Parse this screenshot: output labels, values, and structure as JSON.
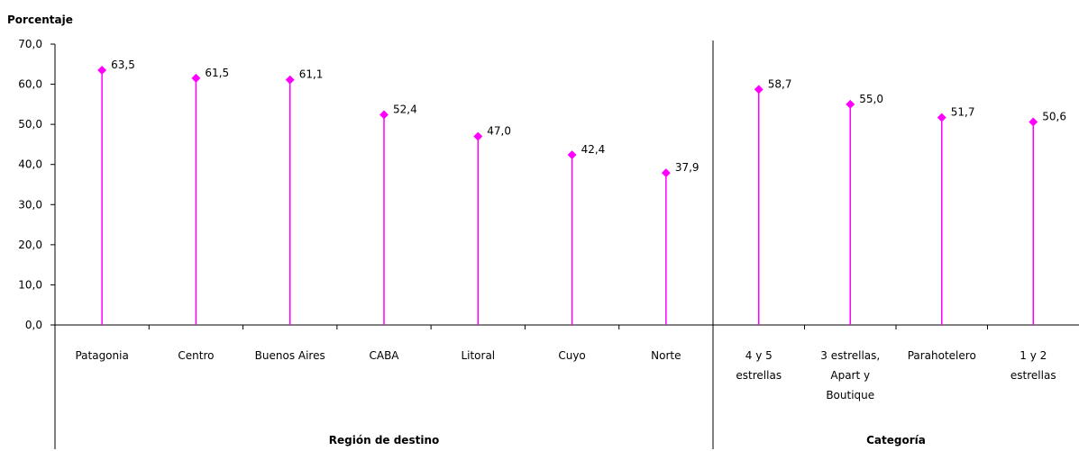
{
  "chart_data": {
    "type": "scatter",
    "style": "lollipop",
    "ylabel": "Porcentaje",
    "ylim": [
      0,
      70
    ],
    "yticks": [
      "0,0",
      "10,0",
      "20,0",
      "30,0",
      "40,0",
      "50,0",
      "60,0",
      "70,0"
    ],
    "grid": false,
    "marker_color": "#FF00FF",
    "groups": [
      {
        "name": "Región de destino",
        "categories": [
          [
            "Patagonia"
          ],
          [
            "Centro"
          ],
          [
            "Buenos Aires"
          ],
          [
            "CABA"
          ],
          [
            "Litoral"
          ],
          [
            "Cuyo"
          ],
          [
            "Norte"
          ]
        ],
        "values": [
          63.5,
          61.5,
          61.1,
          52.4,
          47.0,
          42.4,
          37.9
        ],
        "labels": [
          "63,5",
          "61,5",
          "61,1",
          "52,4",
          "47,0",
          "42,4",
          "37,9"
        ]
      },
      {
        "name": "Categoría",
        "categories": [
          [
            "4 y 5",
            "estrellas"
          ],
          [
            "3 estrellas,",
            "Apart y",
            "Boutique"
          ],
          [
            "Parahotelero"
          ],
          [
            "1 y 2",
            "estrellas"
          ]
        ],
        "values": [
          58.7,
          55.0,
          51.7,
          50.6
        ],
        "labels": [
          "58,7",
          "55,0",
          "51,7",
          "50,6"
        ]
      }
    ]
  }
}
